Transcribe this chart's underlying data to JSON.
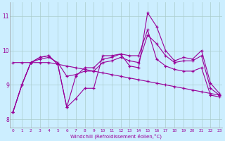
{
  "xlabel": "Windchill (Refroidissement éolien,°C)",
  "background_color": "#cceeff",
  "line_color": "#990099",
  "marker": "+",
  "x_ticks": [
    0,
    1,
    2,
    3,
    4,
    5,
    6,
    7,
    8,
    9,
    10,
    11,
    12,
    13,
    14,
    15,
    16,
    17,
    18,
    19,
    20,
    21,
    22,
    23
  ],
  "y_ticks": [
    8,
    9,
    10,
    11
  ],
  "ylim": [
    7.75,
    11.4
  ],
  "xlim": [
    -0.3,
    23.3
  ],
  "series": [
    [
      8.2,
      9.0,
      9.65,
      9.8,
      9.85,
      9.6,
      8.35,
      8.6,
      8.9,
      8.9,
      9.85,
      9.85,
      9.9,
      9.55,
      9.5,
      11.1,
      10.7,
      10.0,
      9.7,
      9.8,
      9.75,
      10.0,
      9.05,
      8.75
    ],
    [
      9.65,
      9.65,
      9.65,
      9.65,
      9.65,
      9.6,
      9.55,
      9.5,
      9.45,
      9.4,
      9.35,
      9.3,
      9.25,
      9.2,
      9.15,
      9.1,
      9.05,
      9.0,
      8.95,
      8.9,
      8.85,
      8.8,
      8.75,
      8.7
    ],
    [
      8.2,
      9.0,
      9.65,
      9.75,
      9.8,
      9.65,
      9.25,
      9.3,
      9.4,
      9.4,
      9.65,
      9.7,
      9.8,
      9.7,
      9.65,
      10.45,
      10.2,
      9.85,
      9.65,
      9.7,
      9.7,
      9.85,
      8.9,
      8.7
    ],
    [
      8.2,
      9.0,
      9.65,
      9.8,
      9.85,
      9.6,
      8.35,
      9.25,
      9.5,
      9.5,
      9.75,
      9.8,
      9.9,
      9.85,
      9.85,
      10.6,
      9.75,
      9.55,
      9.45,
      9.4,
      9.4,
      9.5,
      8.7,
      8.65
    ]
  ]
}
